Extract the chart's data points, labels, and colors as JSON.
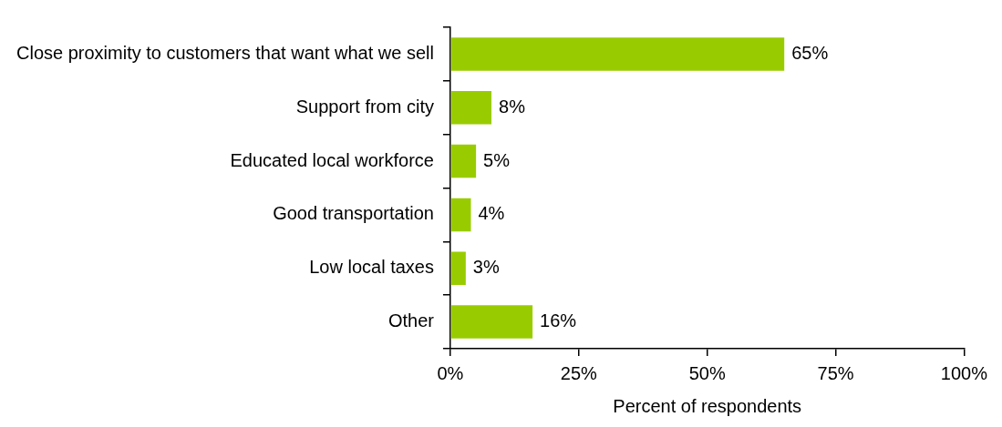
{
  "chart_data": {
    "type": "bar",
    "orientation": "horizontal",
    "xlabel": "Percent of respondents",
    "categories": [
      "Close proximity to customers that want what we sell",
      "Support from city",
      "Educated local workforce",
      "Good transportation",
      "Low local taxes",
      "Other"
    ],
    "values": [
      65,
      8,
      5,
      4,
      3,
      16
    ],
    "color": "#99cc00",
    "value_labels": [
      "65%",
      "8%",
      "5%",
      "4%",
      "3%",
      "16%"
    ],
    "xlim": [
      0,
      100
    ],
    "xticks": [
      {
        "value": 0,
        "label": "0%"
      },
      {
        "value": 25,
        "label": "25%"
      },
      {
        "value": 50,
        "label": "50%"
      },
      {
        "value": 75,
        "label": "75%"
      },
      {
        "value": 100,
        "label": "100%"
      }
    ],
    "grid": false,
    "legend": false
  }
}
